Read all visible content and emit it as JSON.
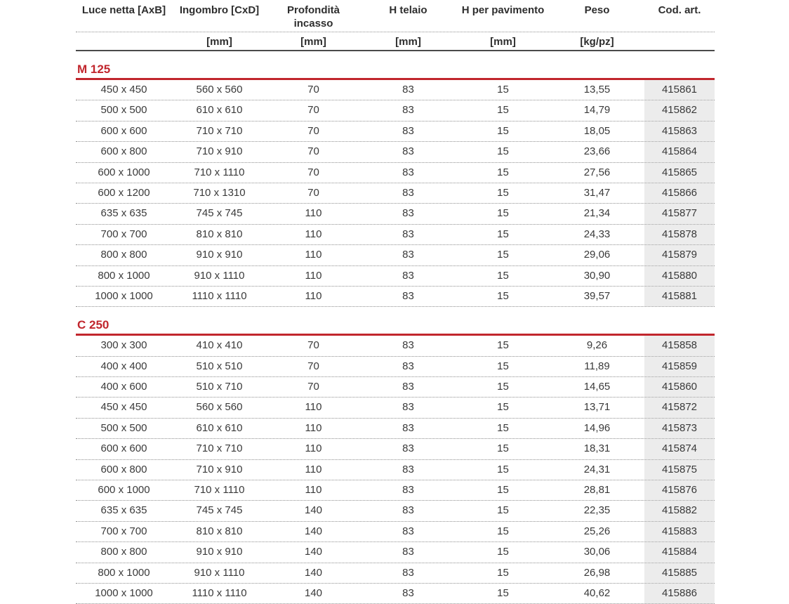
{
  "table": {
    "colors": {
      "accent_red": "#c1262d",
      "code_column_bg": "#ececec"
    },
    "columns": [
      {
        "key": "luce-netta",
        "label": "Luce netta [AxB]",
        "unit": ""
      },
      {
        "key": "ingombro",
        "label": "Ingombro [CxD]",
        "unit": "[mm]"
      },
      {
        "key": "profondita-incasso",
        "label": "Profondità incasso",
        "unit": "[mm]"
      },
      {
        "key": "h-telaio",
        "label": "H telaio",
        "unit": "[mm]"
      },
      {
        "key": "h-per-pavimento",
        "label": "H per pavimento",
        "unit": "[mm]"
      },
      {
        "key": "peso",
        "label": "Peso",
        "unit": "[kg/pz]"
      },
      {
        "key": "cod-art",
        "label": "Cod. art.",
        "unit": ""
      }
    ],
    "sections": [
      {
        "title": "M 125",
        "rows": [
          [
            "450 x 450",
            "560 x 560",
            "70",
            "83",
            "15",
            "13,55",
            "415861"
          ],
          [
            "500 x 500",
            "610 x 610",
            "70",
            "83",
            "15",
            "14,79",
            "415862"
          ],
          [
            "600 x 600",
            "710 x 710",
            "70",
            "83",
            "15",
            "18,05",
            "415863"
          ],
          [
            "600 x 800",
            "710 x 910",
            "70",
            "83",
            "15",
            "23,66",
            "415864"
          ],
          [
            "600 x 1000",
            "710 x 1110",
            "70",
            "83",
            "15",
            "27,56",
            "415865"
          ],
          [
            "600 x 1200",
            "710 x 1310",
            "70",
            "83",
            "15",
            "31,47",
            "415866"
          ],
          [
            "635 x 635",
            "745 x 745",
            "110",
            "83",
            "15",
            "21,34",
            "415877"
          ],
          [
            "700 x 700",
            "810 x 810",
            "110",
            "83",
            "15",
            "24,33",
            "415878"
          ],
          [
            "800 x 800",
            "910 x 910",
            "110",
            "83",
            "15",
            "29,06",
            "415879"
          ],
          [
            "800 x 1000",
            "910 x 1110",
            "110",
            "83",
            "15",
            "30,90",
            "415880"
          ],
          [
            "1000 x 1000",
            "1110 x 1110",
            "110",
            "83",
            "15",
            "39,57",
            "415881"
          ]
        ]
      },
      {
        "title": "C 250",
        "rows": [
          [
            "300 x 300",
            "410 x 410",
            "70",
            "83",
            "15",
            "9,26",
            "415858"
          ],
          [
            "400 x 400",
            "510 x 510",
            "70",
            "83",
            "15",
            "11,89",
            "415859"
          ],
          [
            "400 x 600",
            "510 x 710",
            "70",
            "83",
            "15",
            "14,65",
            "415860"
          ],
          [
            "450 x 450",
            "560 x 560",
            "110",
            "83",
            "15",
            "13,71",
            "415872"
          ],
          [
            "500 x 500",
            "610 x 610",
            "110",
            "83",
            "15",
            "14,96",
            "415873"
          ],
          [
            "600 x 600",
            "710 x 710",
            "110",
            "83",
            "15",
            "18,31",
            "415874"
          ],
          [
            "600 x 800",
            "710 x 910",
            "110",
            "83",
            "15",
            "24,31",
            "415875"
          ],
          [
            "600 x 1000",
            "710 x 1110",
            "110",
            "83",
            "15",
            "28,81",
            "415876"
          ],
          [
            "635 x 635",
            "745 x 745",
            "140",
            "83",
            "15",
            "22,35",
            "415882"
          ],
          [
            "700 x 700",
            "810 x 810",
            "140",
            "83",
            "15",
            "25,26",
            "415883"
          ],
          [
            "800 x 800",
            "910 x 910",
            "140",
            "83",
            "15",
            "30,06",
            "415884"
          ],
          [
            "800 x 1000",
            "910 x 1110",
            "140",
            "83",
            "15",
            "26,98",
            "415885"
          ],
          [
            "1000 x 1000",
            "1110 x 1110",
            "140",
            "83",
            "15",
            "40,62",
            "415886"
          ]
        ]
      }
    ]
  }
}
